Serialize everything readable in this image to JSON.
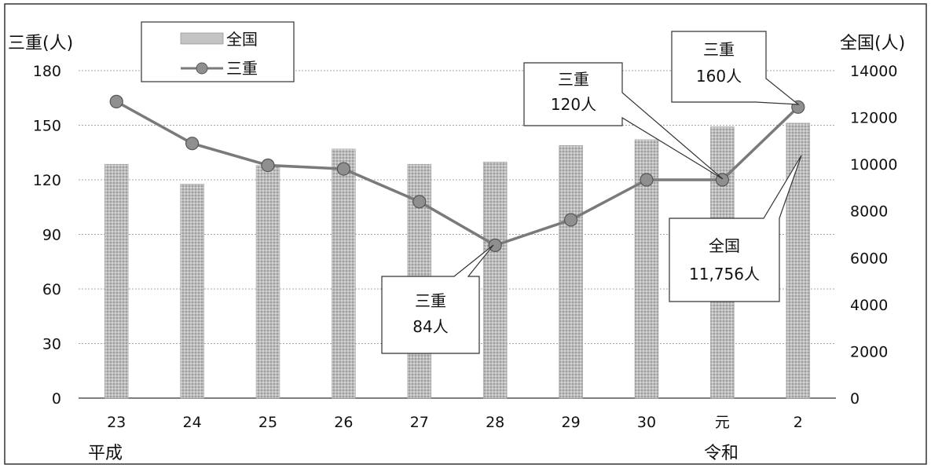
{
  "chart_data": {
    "type": "bar",
    "categories": [
      "23",
      "24",
      "25",
      "26",
      "27",
      "28",
      "29",
      "30",
      "元",
      "2"
    ],
    "era_labels": {
      "heisei": "平成",
      "reiwa": "令和"
    },
    "series": [
      {
        "name": "全国",
        "type": "bar",
        "axis": "right",
        "values": [
          10000,
          9150,
          9950,
          10650,
          10000,
          10100,
          10800,
          11050,
          11600,
          11756
        ],
        "color": "#b8b8b8"
      },
      {
        "name": "三重",
        "type": "line",
        "axis": "left",
        "values": [
          163,
          140,
          128,
          126,
          108,
          84,
          98,
          120,
          120,
          160
        ],
        "color": "#7a7a7a",
        "marker_color": "#8f8f8f"
      }
    ],
    "left_axis": {
      "label": "三重(人)",
      "ylim": [
        0,
        180
      ],
      "ticks": [
        0,
        30,
        60,
        90,
        120,
        150,
        180
      ]
    },
    "right_axis": {
      "label": "全国(人)",
      "ylim": [
        0,
        14000
      ],
      "ticks": [
        0,
        2000,
        4000,
        6000,
        8000,
        10000,
        12000,
        14000
      ]
    },
    "grid": true,
    "legend": {
      "placement": "top-left",
      "items": [
        {
          "label": "全国",
          "kind": "bar"
        },
        {
          "label": "三重",
          "kind": "line"
        }
      ]
    },
    "annotations": [
      {
        "line1": "三重",
        "line2": "84人",
        "point_index": 5,
        "series": "三重"
      },
      {
        "line1": "三重",
        "line2": "120人",
        "point_index": 8,
        "series": "三重"
      },
      {
        "line1": "三重",
        "line2": "160人",
        "point_index": 9,
        "series": "三重"
      },
      {
        "line1": "全国",
        "line2": "11,756人",
        "point_index": 9,
        "series": "全国"
      }
    ]
  }
}
